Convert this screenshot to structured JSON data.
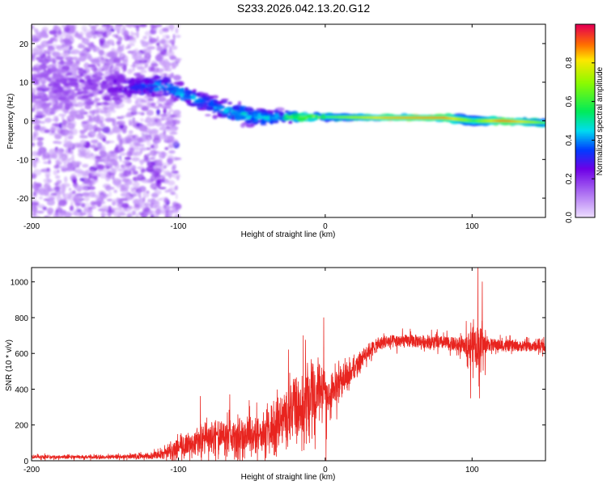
{
  "title": "S233.2026.042.13.20.G12",
  "chart_data": [
    {
      "type": "heatmap",
      "xlabel": "Height of straight line (km)",
      "ylabel": "Frequency (Hz)",
      "xlim": [
        -200,
        150
      ],
      "ylim": [
        -25,
        25
      ],
      "xticks": [
        -200,
        -100,
        0,
        100
      ],
      "yticks": [
        -20,
        -10,
        0,
        10,
        20
      ],
      "colorbar": {
        "label": "Normalized spectral amplitude",
        "ticks": [
          "0.0",
          "0.2",
          "0.4",
          "0.6",
          "0.8"
        ],
        "range": [
          0,
          1
        ]
      },
      "ridge": [
        {
          "x": -200,
          "f": 10,
          "spread": 15,
          "amp": 0.15
        },
        {
          "x": -150,
          "f": 9,
          "spread": 9,
          "amp": 0.2
        },
        {
          "x": -130,
          "f": 9,
          "spread": 4,
          "amp": 0.3
        },
        {
          "x": -110,
          "f": 9,
          "spread": 3,
          "amp": 0.45
        },
        {
          "x": -90,
          "f": 6,
          "spread": 3,
          "amp": 0.4
        },
        {
          "x": -70,
          "f": 3,
          "spread": 3.5,
          "amp": 0.4
        },
        {
          "x": -50,
          "f": 1,
          "spread": 3,
          "amp": 0.45
        },
        {
          "x": -30,
          "f": 1,
          "spread": 2,
          "amp": 0.45
        },
        {
          "x": -15,
          "f": 1,
          "spread": 1.2,
          "amp": 0.7
        },
        {
          "x": 0,
          "f": 1,
          "spread": 1,
          "amp": 0.6
        },
        {
          "x": 40,
          "f": 0.8,
          "spread": 0.8,
          "amp": 0.85
        },
        {
          "x": 80,
          "f": 0.8,
          "spread": 0.8,
          "amp": 0.9
        },
        {
          "x": 100,
          "f": 0,
          "spread": 1.5,
          "amp": 0.6
        },
        {
          "x": 120,
          "f": 0,
          "spread": 0.8,
          "amp": 0.95
        },
        {
          "x": 150,
          "f": -0.5,
          "spread": 1,
          "amp": 0.6
        }
      ]
    },
    {
      "type": "line",
      "xlabel": "Height of straight line (km)",
      "ylabel": "SNR (10 * v/v)",
      "xlim": [
        -200,
        150
      ],
      "ylim": [
        0,
        1080
      ],
      "xticks": [
        -200,
        -100,
        0,
        100
      ],
      "yticks": [
        0,
        200,
        400,
        600,
        800,
        1000
      ],
      "series": [
        {
          "name": "SNR",
          "color": "#e8241f",
          "envelope_x": [
            -200,
            -150,
            -120,
            -110,
            -100,
            -80,
            -60,
            -40,
            -30,
            -20,
            -10,
            -5,
            0,
            10,
            20,
            30,
            40,
            60,
            80,
            95,
            100,
            105,
            110,
            130,
            150
          ],
          "envelope_y": [
            25,
            25,
            30,
            55,
            100,
            160,
            170,
            200,
            280,
            360,
            430,
            460,
            420,
            470,
            540,
            620,
            665,
            670,
            660,
            640,
            650,
            640,
            650,
            640,
            640
          ],
          "noise": [
            10,
            10,
            15,
            30,
            60,
            90,
            100,
            110,
            130,
            170,
            200,
            180,
            150,
            90,
            60,
            50,
            45,
            45,
            45,
            50,
            120,
            150,
            45,
            35,
            35
          ],
          "spikes": [
            {
              "x": -85,
              "y": 360
            },
            {
              "x": -65,
              "y": 370
            },
            {
              "x": -25,
              "y": 620
            },
            {
              "x": -15,
              "y": 700
            },
            {
              "x": -1,
              "y": 800
            },
            {
              "x": 0.5,
              "y": 0
            },
            {
              "x": 96,
              "y": 780
            },
            {
              "x": 99,
              "y": 350
            },
            {
              "x": 101,
              "y": 790
            },
            {
              "x": 104,
              "y": 1080
            },
            {
              "x": 105,
              "y": 350
            },
            {
              "x": 107,
              "y": 1000
            },
            {
              "x": 109,
              "y": 480
            }
          ]
        }
      ]
    }
  ]
}
